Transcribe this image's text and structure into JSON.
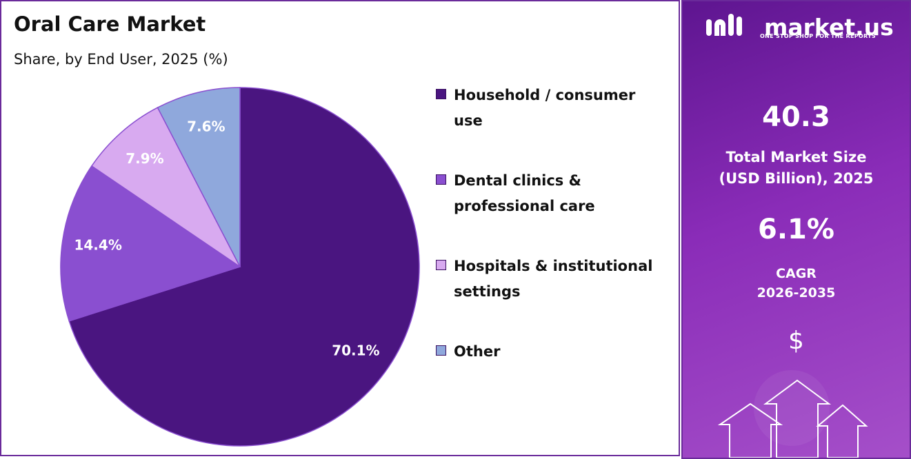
{
  "chart_data": {
    "type": "pie",
    "title": "Oral Care Market",
    "subtitle": "Share, by End User, 2025 (%)",
    "categories": [
      "Household / consumer use",
      "Dental clinics & professional care",
      "Hospitals & institutional settings",
      "Other"
    ],
    "values": [
      70.1,
      14.4,
      7.9,
      7.6
    ],
    "value_labels": [
      "70.1%",
      "14.4%",
      "7.9%",
      "7.6%"
    ],
    "colors": [
      "#4a1580",
      "#8a4fd0",
      "#d8aaf0",
      "#8fa8dc"
    ],
    "legend": "right"
  },
  "panel": {
    "brand": "market.us",
    "tagline": "ONE STOP SHOP FOR THE REPORTS",
    "market_size": "40.3",
    "market_size_label": [
      "Total Market Size",
      "(USD Billion), 2025"
    ],
    "cagr": "6.1%",
    "cagr_label": [
      "CAGR",
      "2026-2035"
    ],
    "icon": "$"
  }
}
